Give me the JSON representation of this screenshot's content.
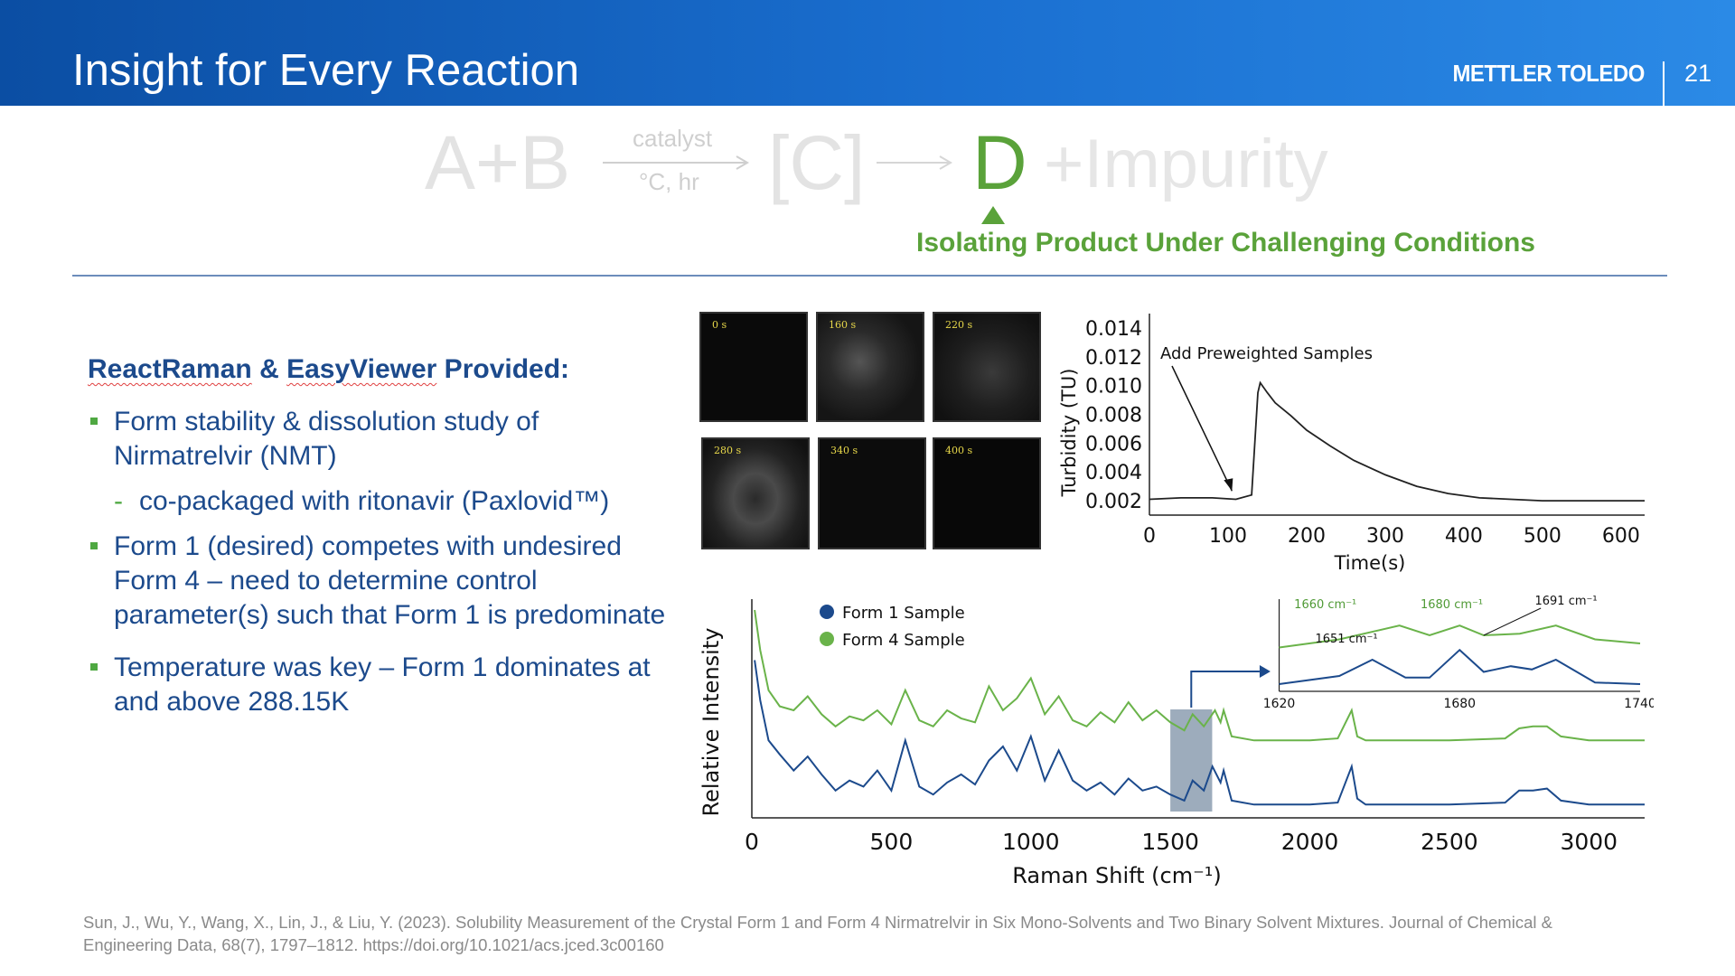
{
  "header": {
    "title": "Insight for Every Reaction",
    "brand": "METTLER TOLEDO",
    "page_number": "21"
  },
  "equation": {
    "reactants": "A+B",
    "arrow_top": "catalyst",
    "arrow_bottom": "°C, hr",
    "intermediate": "[C]",
    "product": "D",
    "byproduct": "+Impurity",
    "caption": "Isolating Product Under Challenging Conditions"
  },
  "left": {
    "heading_part1": "ReactRaman",
    "heading_part2": " & ",
    "heading_part3": "EasyViewer",
    "heading_part4": " Provided:",
    "bullet1": "Form stability & dissolution study of Nirmatrelvir (NMT)",
    "bullet1_sub": "co-packaged with ritonavir (Paxlovid™)",
    "bullet2": "Form 1 (desired) competes with undesired Form 4 – need to determine control parameter(s) such that Form 1 is predominate",
    "bullet3": "Temperature was key – Form 1 dominates at and above 288.15K"
  },
  "micrographs": {
    "labels": [
      "0 s",
      "160 s",
      "220 s",
      "280 s",
      "340 s",
      "400 s"
    ]
  },
  "chart_data": [
    {
      "type": "line",
      "title": "",
      "xlabel": "Time(s)",
      "ylabel": "Turbidity (TU)",
      "xlim": [
        0,
        630
      ],
      "ylim": [
        0.001,
        0.015
      ],
      "xticks": [
        "0",
        "100",
        "200",
        "300",
        "400",
        "500",
        "600"
      ],
      "yticks": [
        "0.014",
        "0.012",
        "0.010",
        "0.008",
        "0.006",
        "0.004",
        "0.002"
      ],
      "annotation": "Add Preweighted Samples",
      "series": [
        {
          "x": [
            0,
            40,
            80,
            110,
            130,
            138,
            141,
            150,
            160,
            180,
            200,
            230,
            260,
            300,
            340,
            380,
            420,
            460,
            500,
            550,
            630
          ],
          "y": [
            0.0021,
            0.0022,
            0.0022,
            0.0021,
            0.0024,
            0.0095,
            0.0102,
            0.0095,
            0.0088,
            0.0079,
            0.0069,
            0.0058,
            0.0048,
            0.0038,
            0.003,
            0.0025,
            0.0022,
            0.0021,
            0.002,
            0.002,
            0.002
          ]
        }
      ]
    },
    {
      "type": "line",
      "title": "",
      "xlabel": "Raman Shift (cm⁻¹)",
      "ylabel": "Relative Intensity",
      "xlim": [
        0,
        3200
      ],
      "xticks": [
        "0",
        "500",
        "1000",
        "1500",
        "2000",
        "2500",
        "3000"
      ],
      "legend": "top-left",
      "series": [
        {
          "name": "Form 1 Sample",
          "color": "#1c4a8c",
          "x": [
            10,
            30,
            60,
            100,
            150,
            200,
            250,
            300,
            350,
            400,
            450,
            500,
            550,
            600,
            650,
            700,
            750,
            800,
            850,
            900,
            950,
            1000,
            1050,
            1100,
            1150,
            1200,
            1250,
            1300,
            1350,
            1400,
            1450,
            1500,
            1550,
            1580,
            1620,
            1651,
            1680,
            1691,
            1720,
            1800,
            2000,
            2100,
            2150,
            2170,
            2200,
            2300,
            2500,
            2700,
            2750,
            2800,
            2850,
            2900,
            3000,
            3200
          ],
          "y": [
            0.75,
            0.55,
            0.35,
            0.28,
            0.2,
            0.27,
            0.18,
            0.1,
            0.15,
            0.12,
            0.2,
            0.1,
            0.35,
            0.12,
            0.08,
            0.14,
            0.18,
            0.13,
            0.25,
            0.32,
            0.2,
            0.37,
            0.15,
            0.3,
            0.15,
            0.1,
            0.14,
            0.08,
            0.16,
            0.1,
            0.12,
            0.08,
            0.05,
            0.15,
            0.1,
            0.22,
            0.14,
            0.2,
            0.05,
            0.03,
            0.03,
            0.04,
            0.22,
            0.06,
            0.03,
            0.03,
            0.03,
            0.04,
            0.1,
            0.1,
            0.11,
            0.05,
            0.03,
            0.03
          ]
        },
        {
          "name": "Form 4 Sample",
          "color": "#6ab34a",
          "x": [
            10,
            30,
            60,
            100,
            150,
            200,
            250,
            300,
            350,
            400,
            450,
            500,
            550,
            600,
            650,
            700,
            750,
            800,
            850,
            900,
            950,
            1000,
            1050,
            1100,
            1150,
            1200,
            1250,
            1300,
            1350,
            1400,
            1450,
            1500,
            1550,
            1580,
            1620,
            1660,
            1680,
            1691,
            1720,
            1800,
            2000,
            2100,
            2150,
            2170,
            2200,
            2300,
            2500,
            2700,
            2750,
            2800,
            2850,
            2900,
            3000,
            3200
          ],
          "y": [
            1.0,
            0.8,
            0.6,
            0.52,
            0.5,
            0.57,
            0.48,
            0.42,
            0.47,
            0.45,
            0.5,
            0.43,
            0.6,
            0.45,
            0.42,
            0.5,
            0.46,
            0.44,
            0.62,
            0.5,
            0.56,
            0.66,
            0.48,
            0.57,
            0.45,
            0.42,
            0.49,
            0.44,
            0.54,
            0.45,
            0.5,
            0.44,
            0.4,
            0.48,
            0.42,
            0.5,
            0.44,
            0.5,
            0.37,
            0.35,
            0.35,
            0.36,
            0.5,
            0.37,
            0.35,
            0.35,
            0.35,
            0.36,
            0.41,
            0.42,
            0.42,
            0.37,
            0.35,
            0.35
          ]
        }
      ],
      "inset": {
        "xlim": [
          1620,
          1740
        ],
        "xticks": [
          "1620",
          "1680",
          "1740"
        ],
        "annotations": [
          "1660 cm⁻¹",
          "1680 cm⁻¹",
          "1691 cm⁻¹",
          "1651 cm⁻¹"
        ]
      }
    }
  ],
  "reference": "Sun, J., Wu, Y., Wang, X., Lin, J., & Liu, Y. (2023). Solubility Measurement of the Crystal Form 1 and Form 4 Nirmatrelvir in Six Mono-Solvents and Two Binary Solvent Mixtures. Journal of Chemical & Engineering Data, 68(7), 1797–1812. https://doi.org/10.1021/acs.jced.3c00160"
}
